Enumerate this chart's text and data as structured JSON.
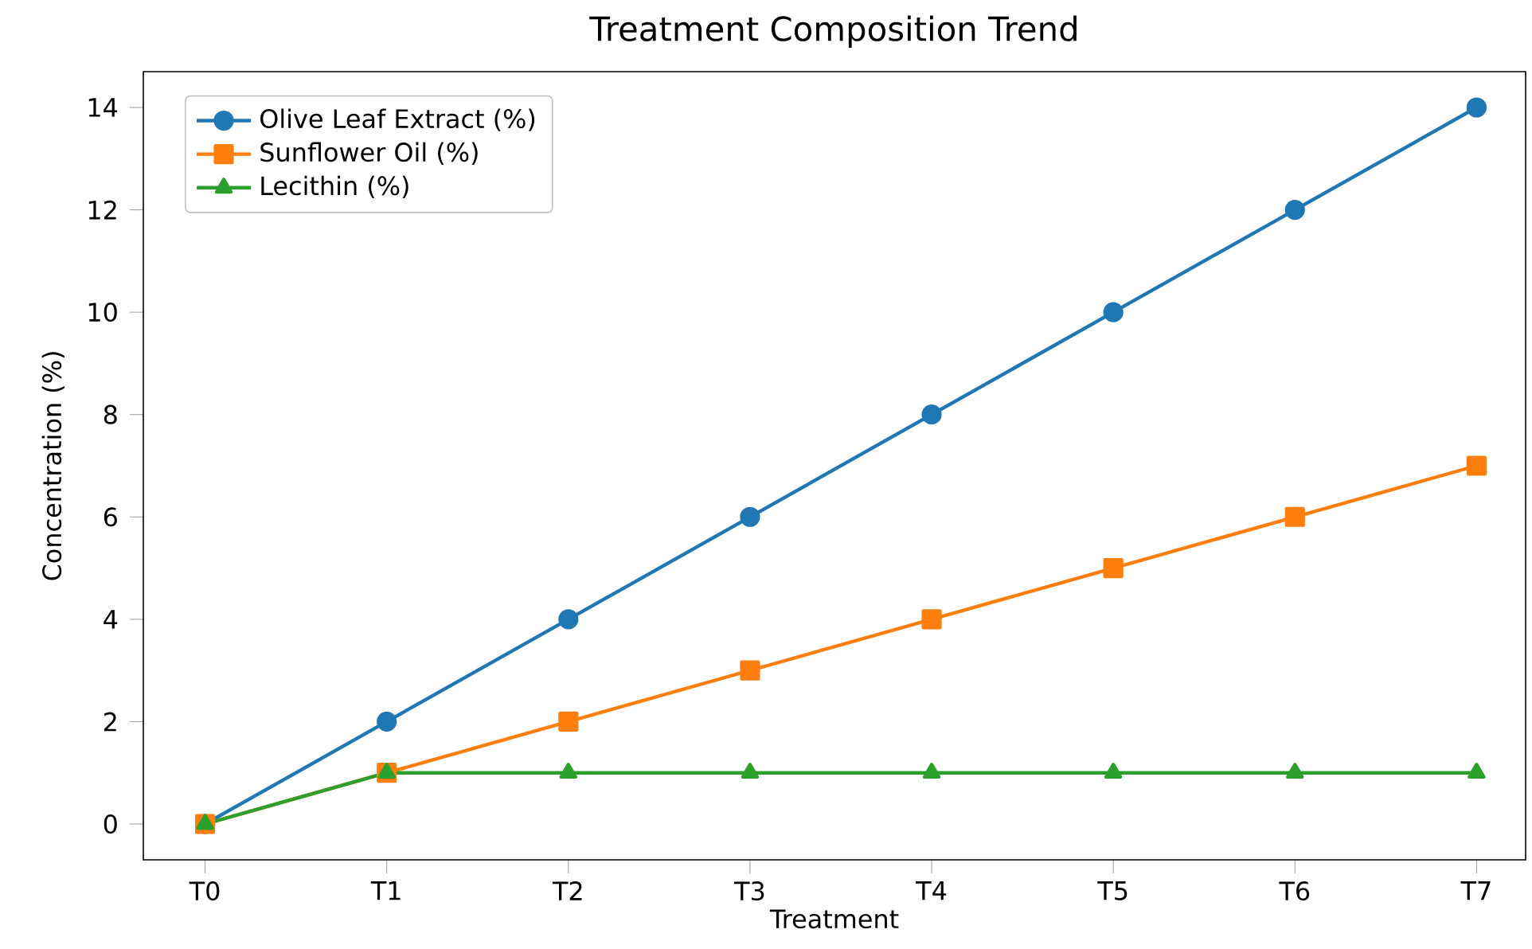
{
  "chart_data": {
    "type": "line",
    "title": "Treatment Composition Trend",
    "xlabel": "Treatment",
    "ylabel": "Concentration (%)",
    "categories": [
      "T0",
      "T1",
      "T2",
      "T3",
      "T4",
      "T5",
      "T6",
      "T7"
    ],
    "series": [
      {
        "name": "Olive Leaf Extract (%)",
        "color": "#1f77b4",
        "marker": "circle",
        "values": [
          0,
          2,
          4,
          6,
          8,
          10,
          12,
          14
        ]
      },
      {
        "name": "Sunflower Oil (%)",
        "color": "#ff7f0e",
        "marker": "square",
        "values": [
          0,
          1,
          2,
          3,
          4,
          5,
          6,
          7
        ]
      },
      {
        "name": "Lecithin (%)",
        "color": "#2ca02c",
        "marker": "triangle",
        "values": [
          0,
          1,
          1,
          1,
          1,
          1,
          1,
          1
        ]
      }
    ],
    "ylim": [
      -0.7,
      14.7
    ],
    "yticks": [
      0,
      2,
      4,
      6,
      8,
      10,
      12,
      14
    ],
    "grid": false,
    "legend": "top left",
    "line_style": "solid"
  }
}
